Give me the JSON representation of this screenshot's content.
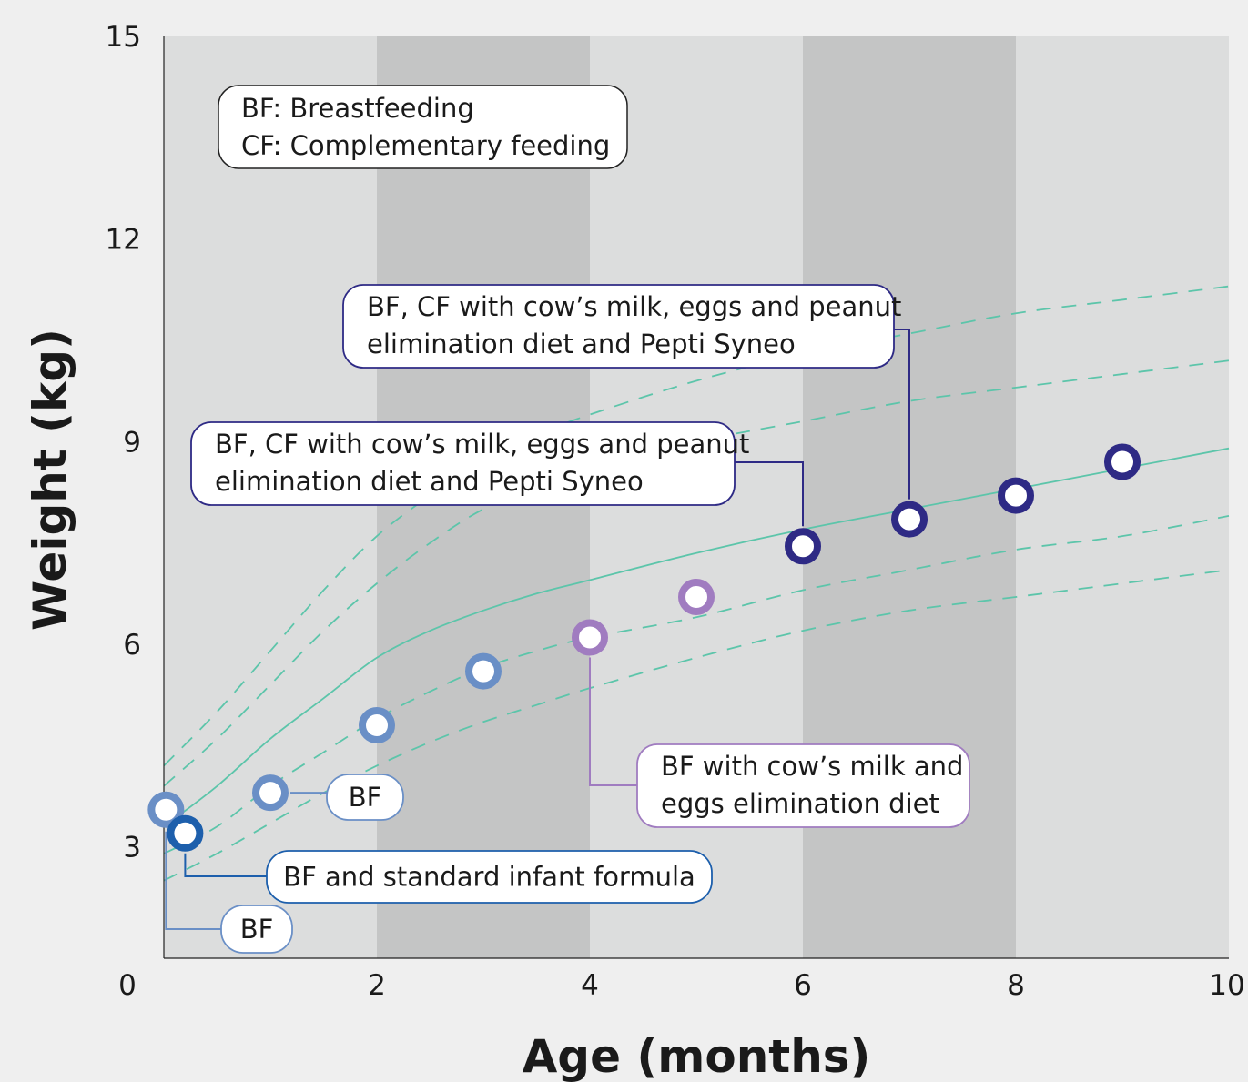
{
  "chart_data": {
    "type": "scatter",
    "xlabel": "Age (months)",
    "ylabel": "Weight (kg)",
    "xlim": [
      0,
      10
    ],
    "ylim": [
      1.35,
      15
    ],
    "x_ticks": [
      0,
      2,
      4,
      6,
      8,
      10
    ],
    "x_tick_labels": [
      "0",
      "2",
      "4",
      "6",
      "8",
      "10"
    ],
    "y_ticks": [
      3,
      6,
      9,
      12,
      15
    ],
    "y_tick_labels": [
      "3",
      "6",
      "9",
      "12",
      "15"
    ],
    "grid": false,
    "legend_box": [
      "BF: Breastfeeding",
      "CF: Complementary feeding"
    ],
    "colors": {
      "background": "#efefef",
      "band_light": "#dcdddd",
      "band_dark": "#c4c5c5",
      "curve": "#5cc5aa",
      "light_blue": "#6a8fc6",
      "dark_blue": "#1d5fac",
      "purple": "#a07cc0",
      "navy": "#2e2a85"
    },
    "bands": [
      {
        "x0": 0,
        "x1": 2,
        "shade": "light"
      },
      {
        "x0": 2,
        "x1": 4,
        "shade": "dark"
      },
      {
        "x0": 4,
        "x1": 6,
        "shade": "light"
      },
      {
        "x0": 6,
        "x1": 8,
        "shade": "dark"
      },
      {
        "x0": 8,
        "x1": 10,
        "shade": "light"
      }
    ],
    "growth_curves": [
      {
        "style": "dashed",
        "x": [
          0,
          0.5,
          1,
          1.5,
          2,
          2.5,
          3,
          3.5,
          4,
          5,
          6,
          7,
          8,
          9,
          10
        ],
        "y": [
          4.2,
          5.0,
          5.9,
          6.8,
          7.6,
          8.2,
          8.7,
          9.1,
          9.4,
          9.9,
          10.3,
          10.6,
          10.9,
          11.1,
          11.3
        ]
      },
      {
        "style": "dashed",
        "x": [
          0,
          0.5,
          1,
          1.5,
          2,
          2.5,
          3,
          3.5,
          4,
          5,
          6,
          7,
          8,
          9,
          10
        ],
        "y": [
          3.9,
          4.6,
          5.4,
          6.2,
          6.9,
          7.5,
          8.0,
          8.3,
          8.6,
          9.0,
          9.3,
          9.6,
          9.8,
          10.0,
          10.2
        ]
      },
      {
        "style": "solid",
        "x": [
          0,
          0.5,
          1,
          1.5,
          2,
          2.5,
          3,
          3.5,
          4,
          5,
          6,
          7,
          8,
          9,
          10
        ],
        "y": [
          3.3,
          3.9,
          4.6,
          5.2,
          5.8,
          6.2,
          6.5,
          6.75,
          6.95,
          7.35,
          7.7,
          8.0,
          8.3,
          8.6,
          8.9
        ]
      },
      {
        "style": "dashed",
        "x": [
          0,
          0.5,
          1,
          1.5,
          2,
          2.5,
          3,
          3.5,
          4,
          5,
          6,
          7,
          8,
          9,
          10
        ],
        "y": [
          2.9,
          3.3,
          3.9,
          4.4,
          4.9,
          5.3,
          5.65,
          5.9,
          6.1,
          6.4,
          6.8,
          7.1,
          7.4,
          7.6,
          7.9
        ]
      },
      {
        "style": "dashed",
        "x": [
          0,
          0.5,
          1,
          1.5,
          2,
          2.5,
          3,
          3.5,
          4,
          5,
          6,
          7,
          8,
          9,
          10
        ],
        "y": [
          2.5,
          2.9,
          3.35,
          3.8,
          4.2,
          4.55,
          4.85,
          5.1,
          5.35,
          5.8,
          6.2,
          6.5,
          6.7,
          6.9,
          7.1
        ]
      }
    ],
    "points": [
      {
        "x": 0.02,
        "y": 3.55,
        "color_key": "light_blue"
      },
      {
        "x": 0.2,
        "y": 3.2,
        "color_key": "dark_blue"
      },
      {
        "x": 1.0,
        "y": 3.8,
        "color_key": "light_blue"
      },
      {
        "x": 2.0,
        "y": 4.8,
        "color_key": "light_blue"
      },
      {
        "x": 3.0,
        "y": 5.6,
        "color_key": "light_blue"
      },
      {
        "x": 4.0,
        "y": 6.1,
        "color_key": "purple"
      },
      {
        "x": 5.0,
        "y": 6.7,
        "color_key": "purple"
      },
      {
        "x": 6.0,
        "y": 7.45,
        "color_key": "navy"
      },
      {
        "x": 7.0,
        "y": 7.85,
        "color_key": "navy"
      },
      {
        "x": 8.0,
        "y": 8.2,
        "color_key": "navy"
      },
      {
        "x": 9.0,
        "y": 8.7,
        "color_key": "navy"
      }
    ],
    "annotations": [
      {
        "lines": [
          "BF"
        ],
        "color_key": "light_blue",
        "point_index": 0
      },
      {
        "lines": [
          "BF and standard infant formula"
        ],
        "color_key": "dark_blue",
        "point_index": 1
      },
      {
        "lines": [
          "BF"
        ],
        "color_key": "light_blue",
        "point_index": 2
      },
      {
        "lines": [
          "BF with cow’s milk and",
          "eggs elimination diet"
        ],
        "color_key": "purple",
        "point_index": 5
      },
      {
        "lines": [
          "BF, CF with cow’s milk, eggs and peanut",
          "elimination diet and Pepti Syneo"
        ],
        "color_key": "navy",
        "point_index": 7
      },
      {
        "lines": [
          "BF, CF with cow’s milk, eggs and peanut",
          "elimination diet and Pepti Syneo"
        ],
        "color_key": "navy",
        "point_index": 8
      }
    ]
  }
}
